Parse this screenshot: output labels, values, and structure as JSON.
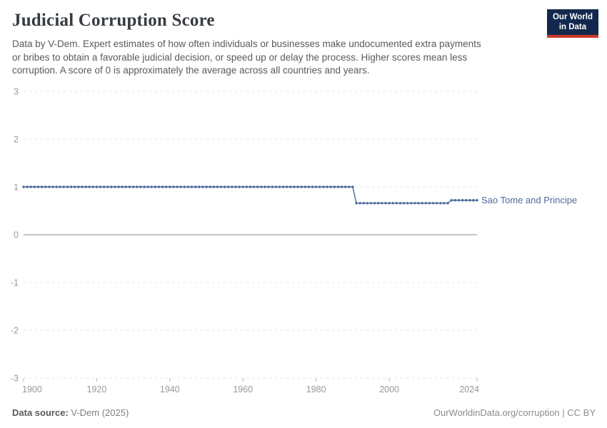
{
  "header": {
    "title": "Judicial Corruption Score",
    "logo": {
      "line1": "Our World",
      "line2": "in Data"
    }
  },
  "subtitle": {
    "lines": [
      "Data by V-Dem. Expert estimates of how often individuals or businesses make undocumented extra payments",
      "or bribes to obtain a favorable judicial decision, or speed up or delay the process. Higher scores mean less",
      "corruption. A score of 0 is approximately the average across all countries and years."
    ],
    "full_text": "Data by V-Dem. Expert estimates of how often individuals or businesses make undocumented extra payments or bribes to obtain a favorable judicial decision, or speed up or delay the process. Higher scores mean less corruption. A score of 0 is approximately the average across all countries and years."
  },
  "chart_data": {
    "type": "line",
    "title": "Judicial Corruption Score",
    "xlabel": "",
    "ylabel": "",
    "ylim": [
      -3,
      3
    ],
    "xlim": [
      1900,
      2024
    ],
    "yticks": [
      3,
      2,
      1,
      0,
      -1,
      -2,
      -3
    ],
    "xticks": [
      1900,
      1920,
      1940,
      1960,
      1980,
      2000,
      2024
    ],
    "grid": "dashed-horizontal",
    "zero_line": true,
    "legend": "end-of-line-label",
    "marker": "dot-per-year",
    "x": [
      1900,
      1901,
      1902,
      1903,
      1904,
      1905,
      1906,
      1907,
      1908,
      1909,
      1910,
      1911,
      1912,
      1913,
      1914,
      1915,
      1916,
      1917,
      1918,
      1919,
      1920,
      1921,
      1922,
      1923,
      1924,
      1925,
      1926,
      1927,
      1928,
      1929,
      1930,
      1931,
      1932,
      1933,
      1934,
      1935,
      1936,
      1937,
      1938,
      1939,
      1940,
      1941,
      1942,
      1943,
      1944,
      1945,
      1946,
      1947,
      1948,
      1949,
      1950,
      1951,
      1952,
      1953,
      1954,
      1955,
      1956,
      1957,
      1958,
      1959,
      1960,
      1961,
      1962,
      1963,
      1964,
      1965,
      1966,
      1967,
      1968,
      1969,
      1970,
      1971,
      1972,
      1973,
      1974,
      1975,
      1976,
      1977,
      1978,
      1979,
      1980,
      1981,
      1982,
      1983,
      1984,
      1985,
      1986,
      1987,
      1988,
      1989,
      1990,
      1991,
      1992,
      1993,
      1994,
      1995,
      1996,
      1997,
      1998,
      1999,
      2000,
      2001,
      2002,
      2003,
      2004,
      2005,
      2006,
      2007,
      2008,
      2009,
      2010,
      2011,
      2012,
      2013,
      2014,
      2015,
      2016,
      2017,
      2018,
      2019,
      2020,
      2021,
      2022,
      2023,
      2024
    ],
    "series": [
      {
        "name": "Sao Tome and Principe",
        "color": "#4c6a9c",
        "values": [
          1,
          1,
          1,
          1,
          1,
          1,
          1,
          1,
          1,
          1,
          1,
          1,
          1,
          1,
          1,
          1,
          1,
          1,
          1,
          1,
          1,
          1,
          1,
          1,
          1,
          1,
          1,
          1,
          1,
          1,
          1,
          1,
          1,
          1,
          1,
          1,
          1,
          1,
          1,
          1,
          1,
          1,
          1,
          1,
          1,
          1,
          1,
          1,
          1,
          1,
          1,
          1,
          1,
          1,
          1,
          1,
          1,
          1,
          1,
          1,
          1,
          1,
          1,
          1,
          1,
          1,
          1,
          1,
          1,
          1,
          1,
          1,
          1,
          1,
          1,
          1,
          1,
          1,
          1,
          1,
          1,
          1,
          1,
          1,
          1,
          1,
          1,
          1,
          1,
          1,
          1,
          0.66,
          0.66,
          0.66,
          0.66,
          0.66,
          0.66,
          0.66,
          0.66,
          0.66,
          0.66,
          0.66,
          0.66,
          0.66,
          0.66,
          0.66,
          0.66,
          0.66,
          0.66,
          0.66,
          0.66,
          0.66,
          0.66,
          0.66,
          0.66,
          0.66,
          0.66,
          0.72,
          0.72,
          0.72,
          0.72,
          0.72,
          0.72,
          0.72,
          0.72
        ]
      }
    ]
  },
  "footer": {
    "source_label": "Data source:",
    "source_value": "V-Dem (2025)",
    "link": "OurWorldinData.org/corruption | CC BY"
  },
  "colors": {
    "line": "#4c6a9c",
    "title_text": "#373c41",
    "subtitle_text": "#5a5a5a",
    "tick_label": "#999999",
    "gridline": "#e0e0e0",
    "zero_line": "#8f8f8f",
    "logo_bg": "#12294d",
    "logo_accent": "#d0382d"
  }
}
